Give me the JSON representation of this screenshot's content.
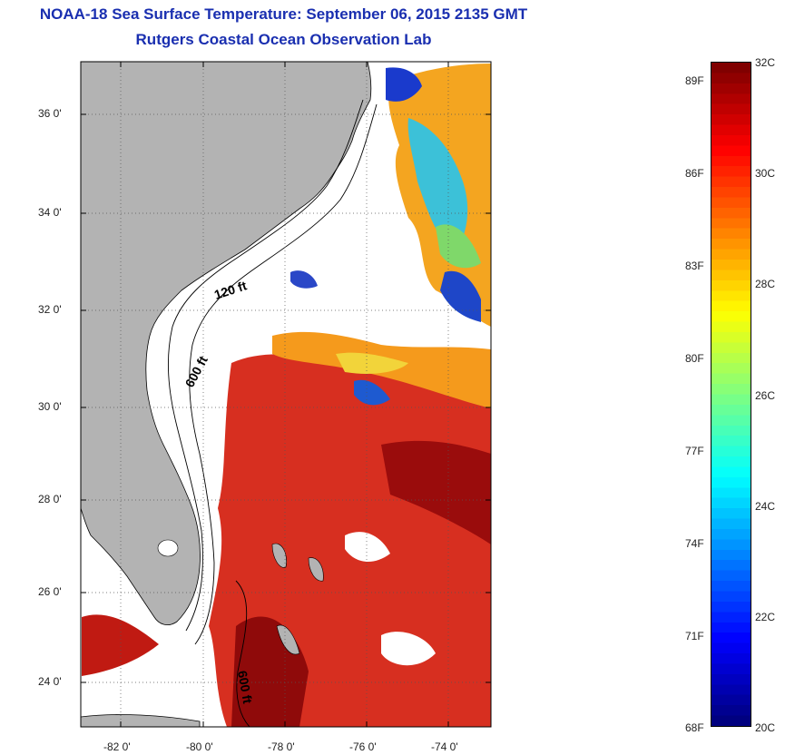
{
  "title": {
    "line1": "NOAA-18 Sea Surface Temperature:  September 06, 2015 2135 GMT",
    "line2": "Rutgers Coastal Ocean Observation Lab"
  },
  "map": {
    "lat_labels": [
      "36 0'",
      "34 0'",
      "32 0'",
      "30 0'",
      "28 0'",
      "26 0'",
      "24 0'"
    ],
    "lon_labels": [
      "-82 0'",
      "-80 0'",
      "-78 0'",
      "-76 0'",
      "-74 0'"
    ],
    "contour_labels": [
      "120 ft",
      "600 ft",
      "600 ft"
    ],
    "colors": {
      "land": "#b3b3b3",
      "ocean_no_data": "#ffffff",
      "contour": "#000000"
    }
  },
  "colorbar": {
    "min_c": 20,
    "max_c": 32,
    "celsius_labels": [
      "32C",
      "30C",
      "28C",
      "26C",
      "24C",
      "22C",
      "20C"
    ],
    "fahrenheit_labels": [
      "89F",
      "86F",
      "83F",
      "80F",
      "77F",
      "74F",
      "71F",
      "68F"
    ],
    "colormap": "jet"
  }
}
